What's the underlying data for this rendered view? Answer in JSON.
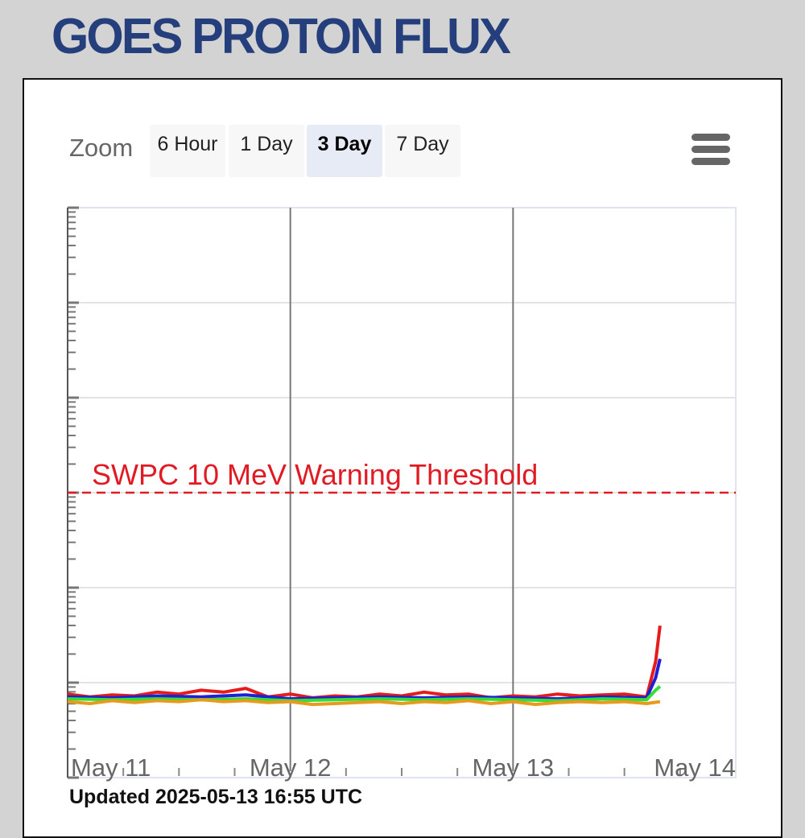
{
  "title": "GOES PROTON FLUX",
  "zoom": {
    "label": "Zoom",
    "buttons": [
      {
        "label": "6 Hour",
        "active": false
      },
      {
        "label": "1 Day",
        "active": false
      },
      {
        "label": "3 Day",
        "active": true
      },
      {
        "label": "7 Day",
        "active": false
      }
    ]
  },
  "menu_icon": "hamburger-menu-icon",
  "updated": "Updated 2025-05-13 16:55 UTC",
  "colors": {
    "threshold": "#e01b24",
    "series_red": "#e51c1c",
    "series_blue": "#1f1fd6",
    "series_green": "#33dd33",
    "series_orange": "#e89a1e"
  },
  "chart_data": {
    "type": "line",
    "x_ticks": [
      "May 11",
      "May 12",
      "May 13",
      "May 14"
    ],
    "xlim": [
      0,
      3
    ],
    "y_scale": "log",
    "ylim_log10": [
      -2,
      4
    ],
    "threshold": {
      "label": "SWPC 10 MeV Warning Threshold",
      "value_log10": 1
    },
    "series": [
      {
        "color_key": "series_red",
        "x": [
          0,
          0.1,
          0.2,
          0.3,
          0.4,
          0.5,
          0.6,
          0.7,
          0.8,
          0.9,
          1.0,
          1.1,
          1.2,
          1.3,
          1.4,
          1.5,
          1.6,
          1.7,
          1.8,
          1.9,
          2.0,
          2.1,
          2.2,
          2.3,
          2.4,
          2.5,
          2.6,
          2.64,
          2.66
        ],
        "y_log10": [
          -1.12,
          -1.15,
          -1.13,
          -1.14,
          -1.1,
          -1.12,
          -1.08,
          -1.1,
          -1.06,
          -1.15,
          -1.12,
          -1.16,
          -1.14,
          -1.15,
          -1.12,
          -1.14,
          -1.1,
          -1.13,
          -1.12,
          -1.16,
          -1.14,
          -1.15,
          -1.12,
          -1.14,
          -1.13,
          -1.12,
          -1.15,
          -0.78,
          -0.4
        ]
      },
      {
        "color_key": "series_blue",
        "x": [
          0,
          0.2,
          0.4,
          0.6,
          0.8,
          1.0,
          1.2,
          1.4,
          1.6,
          1.8,
          2.0,
          2.2,
          2.4,
          2.6,
          2.64,
          2.66
        ],
        "y_log10": [
          -1.15,
          -1.16,
          -1.14,
          -1.15,
          -1.13,
          -1.17,
          -1.16,
          -1.15,
          -1.16,
          -1.15,
          -1.16,
          -1.17,
          -1.15,
          -1.16,
          -0.95,
          -0.75
        ]
      },
      {
        "color_key": "series_green",
        "x": [
          0,
          0.2,
          0.4,
          0.6,
          0.8,
          1.0,
          1.2,
          1.4,
          1.6,
          1.8,
          2.0,
          2.2,
          2.4,
          2.6,
          2.64,
          2.66
        ],
        "y_log10": [
          -1.17,
          -1.18,
          -1.17,
          -1.18,
          -1.17,
          -1.19,
          -1.18,
          -1.17,
          -1.18,
          -1.17,
          -1.18,
          -1.19,
          -1.17,
          -1.18,
          -1.08,
          -1.04
        ]
      },
      {
        "color_key": "series_orange",
        "x": [
          0,
          0.1,
          0.2,
          0.3,
          0.4,
          0.5,
          0.6,
          0.7,
          0.8,
          0.9,
          1.0,
          1.1,
          1.2,
          1.3,
          1.4,
          1.5,
          1.6,
          1.7,
          1.8,
          1.9,
          2.0,
          2.1,
          2.2,
          2.3,
          2.4,
          2.5,
          2.6,
          2.66
        ],
        "y_log10": [
          -1.2,
          -1.22,
          -1.19,
          -1.21,
          -1.19,
          -1.2,
          -1.18,
          -1.2,
          -1.19,
          -1.21,
          -1.2,
          -1.23,
          -1.22,
          -1.21,
          -1.2,
          -1.22,
          -1.2,
          -1.21,
          -1.19,
          -1.22,
          -1.2,
          -1.23,
          -1.21,
          -1.2,
          -1.21,
          -1.2,
          -1.22,
          -1.2
        ]
      }
    ]
  }
}
